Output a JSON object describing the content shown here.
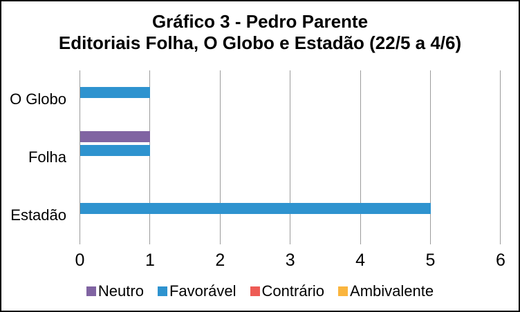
{
  "chart_data": {
    "type": "bar",
    "orientation": "horizontal",
    "title": "Gráfico 3 - Pedro Parente",
    "subtitle": "Editoriais Folha, O Globo e Estadão (22/5 a 4/6)",
    "categories": [
      "O Globo",
      "Folha",
      "Estadão"
    ],
    "series": [
      {
        "name": "Neutro",
        "color": "#8064A2",
        "values": [
          0,
          1,
          0
        ]
      },
      {
        "name": "Favorável",
        "color": "#2E93CF",
        "values": [
          1,
          1,
          5
        ]
      },
      {
        "name": "Contrário",
        "color": "#EE5B55",
        "values": [
          0,
          0,
          0
        ]
      },
      {
        "name": "Ambivalente",
        "color": "#FAB53E",
        "values": [
          0,
          0,
          0
        ]
      }
    ],
    "xlim": [
      0,
      6
    ],
    "xticks": [
      "0",
      "1",
      "2",
      "3",
      "4",
      "5",
      "6"
    ],
    "grid": true,
    "gridline_color": "#9B9B9B",
    "legend_position": "bottom",
    "background_color": "#FFFFFF",
    "border_color": "#000000"
  }
}
